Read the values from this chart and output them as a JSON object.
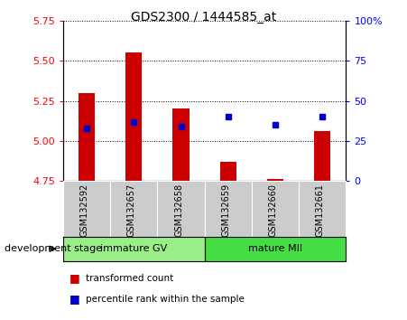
{
  "title": "GDS2300 / 1444585_at",
  "categories": [
    "GSM132592",
    "GSM132657",
    "GSM132658",
    "GSM132659",
    "GSM132660",
    "GSM132661"
  ],
  "bar_values": [
    5.3,
    5.55,
    5.2,
    4.87,
    4.76,
    5.06
  ],
  "bar_bottom": 4.75,
  "percentile_values": [
    33,
    37,
    34,
    40,
    35,
    40
  ],
  "ylim_left": [
    4.75,
    5.75
  ],
  "ylim_right": [
    0,
    100
  ],
  "yticks_left": [
    4.75,
    5.0,
    5.25,
    5.5,
    5.75
  ],
  "yticks_right": [
    0,
    25,
    50,
    75,
    100
  ],
  "bar_color": "#cc0000",
  "percentile_color": "#0000cc",
  "group1_label": "immature GV",
  "group2_label": "mature MII",
  "group1_color": "#99ee88",
  "group2_color": "#44dd44",
  "stage_label": "development stage",
  "legend_bar_label": "transformed count",
  "legend_pct_label": "percentile rank within the sample",
  "bar_width": 0.35,
  "tick_bg_color": "#cccccc",
  "plot_bg_color": "#ffffff",
  "fig_bg_color": "#ffffff"
}
